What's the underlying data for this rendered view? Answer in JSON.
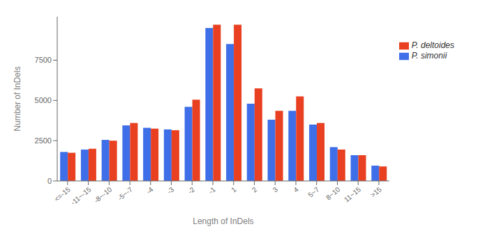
{
  "chart_data": {
    "type": "bar",
    "xlabel": "Length of InDels",
    "ylabel": "Number of InDels",
    "categories": [
      "<=-15",
      "-11~-15",
      "-8~-10",
      "-5~-7",
      "-4",
      "-3",
      "-2",
      "-1",
      "1",
      "2",
      "3",
      "4",
      "5~7",
      "8~10",
      "11~15",
      ">15"
    ],
    "series": [
      {
        "name": "P. simonii",
        "color": "#3f6fe8",
        "values": [
          1800,
          1950,
          2550,
          3450,
          3300,
          3200,
          4600,
          9500,
          8500,
          4800,
          3800,
          4350,
          3500,
          2100,
          1600,
          950
        ]
      },
      {
        "name": "P. deltoides",
        "color": "#e84020",
        "values": [
          1750,
          2000,
          2500,
          3600,
          3250,
          3150,
          5050,
          9700,
          9700,
          5750,
          4350,
          5250,
          3600,
          1950,
          1600,
          900
        ]
      }
    ],
    "ylim": [
      0,
      10200
    ],
    "yticks": [
      0,
      2500,
      5000,
      7500
    ],
    "grid": false,
    "legend": "right"
  }
}
